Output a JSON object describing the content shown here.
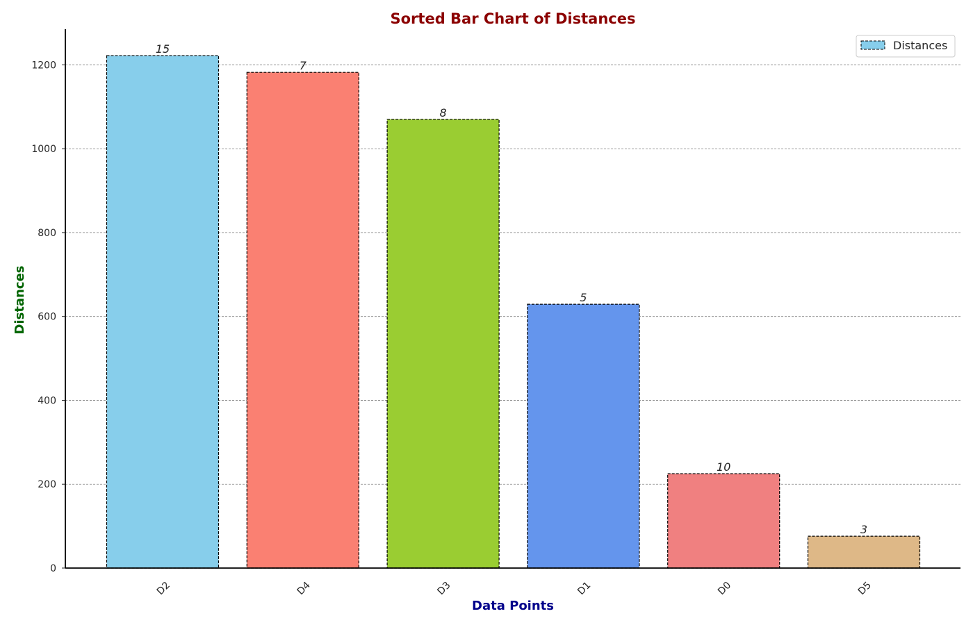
{
  "chart_data": {
    "type": "bar",
    "title": "Sorted Bar Chart of Distances",
    "xlabel": "Data Points",
    "ylabel": "Distances",
    "categories": [
      "D2",
      "D4",
      "D3",
      "D1",
      "D0",
      "D5"
    ],
    "values": [
      1222,
      1182,
      1070,
      629,
      225,
      76
    ],
    "bar_labels": [
      "15",
      "7",
      "8",
      "5",
      "10",
      "3"
    ],
    "colors": [
      "#87CEEB",
      "#FA8072",
      "#9ACD32",
      "#6495ED",
      "#F08080",
      "#DEB887"
    ],
    "yticks": [
      0,
      200,
      400,
      600,
      800,
      1000,
      1200
    ],
    "ylim": [
      0,
      1285
    ],
    "grid": "y",
    "legend": {
      "entries": [
        "Distances"
      ],
      "placement": "top-right"
    },
    "title_color": "#8B0000",
    "xlabel_color": "#00008B",
    "ylabel_color": "#006400"
  }
}
